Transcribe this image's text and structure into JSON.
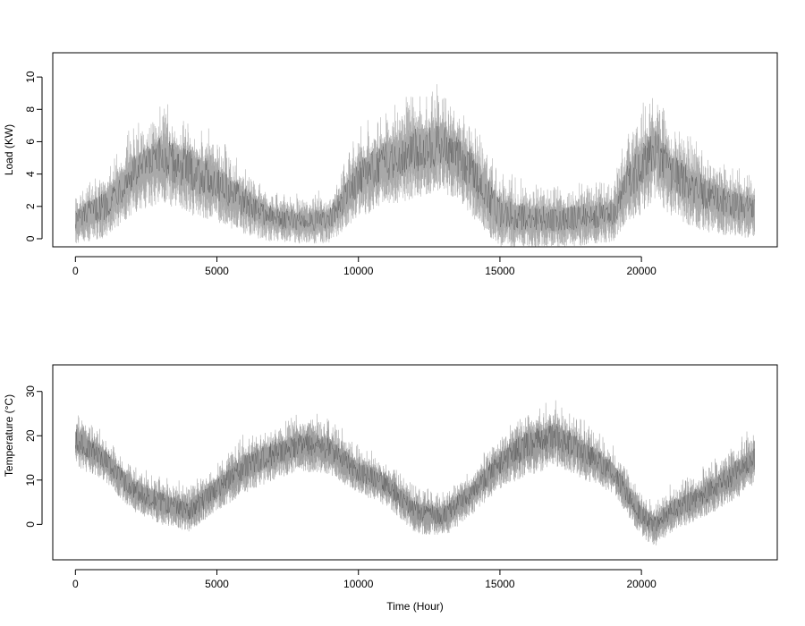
{
  "chart_data": [
    {
      "type": "line",
      "title": "",
      "xlabel": "",
      "ylabel": "Load (KW)",
      "xlim": [
        -800,
        24800
      ],
      "ylim": [
        -0.5,
        11.5
      ],
      "xticks": [
        0,
        5000,
        10000,
        15000,
        20000
      ],
      "xtick_labels": [
        "0",
        "5000",
        "10000",
        "15000",
        "20000"
      ],
      "yticks": [
        0,
        2,
        4,
        6,
        8,
        10
      ],
      "ytick_labels": [
        "0",
        "2",
        "4",
        "6",
        "8",
        "10"
      ],
      "grid": false,
      "legend": "none",
      "line_color": "#9a9a9a",
      "series": [
        {
          "x": [
            0,
            1000,
            2000,
            3000,
            4000,
            5000,
            6000,
            7000,
            8000,
            9000,
            10000,
            11000,
            12000,
            13000,
            14000,
            15000,
            16000,
            17000,
            18000,
            19000,
            19500,
            20000,
            20500,
            21000,
            22000,
            23000,
            24000
          ],
          "y": [
            1.2,
            2.0,
            4.0,
            5.0,
            4.3,
            3.5,
            2.2,
            1.3,
            1.1,
            1.2,
            3.8,
            4.8,
            5.5,
            5.8,
            4.2,
            1.6,
            1.3,
            1.2,
            1.4,
            1.6,
            3.5,
            4.5,
            5.5,
            4.2,
            3.0,
            2.2,
            1.8
          ],
          "spread": [
            1.5,
            2.0,
            2.5,
            2.8,
            2.8,
            2.5,
            2.0,
            1.5,
            1.4,
            1.5,
            2.5,
            2.8,
            3.0,
            3.0,
            2.8,
            2.2,
            1.8,
            1.8,
            1.8,
            1.8,
            2.5,
            3.0,
            3.0,
            2.8,
            2.5,
            2.0,
            1.8
          ]
        }
      ]
    },
    {
      "type": "line",
      "title": "",
      "xlabel": "Time (Hour)",
      "ylabel": "Temperature (°C)",
      "xlim": [
        -800,
        24800
      ],
      "ylim": [
        -8,
        36
      ],
      "xticks": [
        0,
        5000,
        10000,
        15000,
        20000
      ],
      "xtick_labels": [
        "0",
        "5000",
        "10000",
        "15000",
        "20000"
      ],
      "yticks": [
        0,
        10,
        20,
        30
      ],
      "ytick_labels": [
        "0",
        "10",
        "20",
        "30"
      ],
      "grid": false,
      "legend": "none",
      "line_color": "#8c8c8c",
      "series": [
        {
          "x": [
            0,
            1000,
            2000,
            3000,
            4000,
            5000,
            6000,
            7000,
            8000,
            9000,
            10000,
            11000,
            12000,
            13000,
            14000,
            15000,
            16000,
            17000,
            18000,
            19000,
            20000,
            20500,
            21000,
            22000,
            23000,
            24000
          ],
          "y": [
            19,
            15,
            8,
            5,
            3,
            8,
            13,
            16,
            18,
            17,
            12,
            9,
            3,
            2,
            7,
            14,
            18,
            20,
            16,
            12,
            2,
            0,
            3,
            6,
            10,
            15
          ],
          "spread": [
            6,
            5,
            5,
            5,
            5,
            5,
            6,
            6,
            6,
            6,
            5,
            5,
            5,
            5,
            5,
            6,
            7,
            7,
            6,
            5,
            5,
            5,
            5,
            5,
            6,
            6
          ]
        }
      ]
    }
  ]
}
